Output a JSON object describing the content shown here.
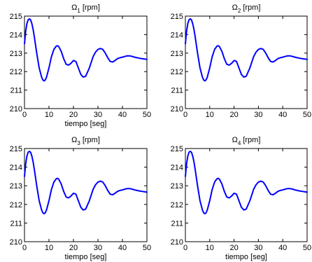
{
  "chart_data": [
    {
      "type": "line",
      "title": {
        "base": "Ω",
        "sub": "1",
        "rest": " [rpm]"
      },
      "xlabel": "tiempo [seg]",
      "ylabel": "",
      "xlim": [
        0,
        50
      ],
      "ylim": [
        210,
        215
      ],
      "xticks": [
        0,
        10,
        20,
        30,
        40,
        50
      ],
      "yticks": [
        210,
        211,
        212,
        213,
        214,
        215
      ],
      "grid": false,
      "series": [
        {
          "color": "#0000ff",
          "x": [
            0,
            0.5,
            1,
            1.5,
            2,
            2.5,
            3,
            3.5,
            4,
            5,
            6,
            7,
            7.5,
            8,
            8.5,
            9,
            10,
            11,
            12,
            13,
            13.5,
            14,
            15,
            16,
            17,
            18,
            19,
            20,
            21,
            22,
            23,
            24,
            25,
            26,
            26.5,
            27,
            28,
            29,
            30,
            31,
            32,
            32.5,
            33,
            34,
            35,
            36,
            37,
            38,
            39,
            40,
            41,
            42,
            43,
            44,
            45,
            46,
            47,
            48,
            49,
            50
          ],
          "y": [
            213.5,
            214.2,
            214.6,
            214.8,
            214.85,
            214.8,
            214.6,
            214.3,
            213.9,
            213.0,
            212.2,
            211.7,
            211.55,
            211.5,
            211.55,
            211.7,
            212.2,
            212.8,
            213.2,
            213.38,
            213.4,
            213.35,
            213.1,
            212.7,
            212.4,
            212.35,
            212.45,
            212.6,
            212.55,
            212.2,
            211.85,
            211.7,
            211.75,
            212.05,
            212.2,
            212.4,
            212.8,
            213.05,
            213.2,
            213.25,
            213.2,
            213.1,
            213.0,
            212.75,
            212.55,
            212.52,
            212.6,
            212.7,
            212.75,
            212.78,
            212.82,
            212.85,
            212.85,
            212.82,
            212.78,
            212.75,
            212.72,
            212.7,
            212.68,
            212.66
          ]
        }
      ]
    },
    {
      "type": "line",
      "title": {
        "base": "Ω",
        "sub": "2",
        "rest": " [rpm]"
      },
      "xlabel": "",
      "ylabel": "",
      "xlim": [
        0,
        50
      ],
      "ylim": [
        210,
        215
      ],
      "xticks": [
        0,
        10,
        20,
        30,
        40,
        50
      ],
      "yticks": [
        210,
        211,
        212,
        213,
        214,
        215
      ],
      "grid": false,
      "series": [
        {
          "color": "#0000ff",
          "x": [
            0,
            0.5,
            1,
            1.5,
            2,
            2.5,
            3,
            3.5,
            4,
            5,
            6,
            7,
            7.5,
            8,
            8.5,
            9,
            10,
            11,
            12,
            13,
            13.5,
            14,
            15,
            16,
            17,
            18,
            19,
            20,
            21,
            22,
            23,
            24,
            25,
            26,
            26.5,
            27,
            28,
            29,
            30,
            31,
            32,
            32.5,
            33,
            34,
            35,
            36,
            37,
            38,
            39,
            40,
            41,
            42,
            43,
            44,
            45,
            46,
            47,
            48,
            49,
            50
          ],
          "y": [
            213.5,
            214.2,
            214.6,
            214.8,
            214.85,
            214.8,
            214.6,
            214.3,
            213.9,
            213.0,
            212.2,
            211.7,
            211.55,
            211.5,
            211.55,
            211.7,
            212.2,
            212.8,
            213.2,
            213.38,
            213.4,
            213.35,
            213.1,
            212.7,
            212.4,
            212.35,
            212.45,
            212.6,
            212.55,
            212.2,
            211.85,
            211.7,
            211.75,
            212.05,
            212.2,
            212.4,
            212.8,
            213.05,
            213.2,
            213.25,
            213.2,
            213.1,
            213.0,
            212.75,
            212.55,
            212.52,
            212.6,
            212.7,
            212.75,
            212.78,
            212.82,
            212.85,
            212.85,
            212.82,
            212.78,
            212.75,
            212.72,
            212.7,
            212.68,
            212.66
          ]
        }
      ]
    },
    {
      "type": "line",
      "title": {
        "base": "Ω",
        "sub": "3",
        "rest": " [rpm]"
      },
      "xlabel": "tiempo [seg]",
      "ylabel": "",
      "xlim": [
        0,
        50
      ],
      "ylim": [
        210,
        215
      ],
      "xticks": [
        0,
        10,
        20,
        30,
        40,
        50
      ],
      "yticks": [
        210,
        211,
        212,
        213,
        214,
        215
      ],
      "grid": false,
      "series": [
        {
          "color": "#0000ff",
          "x": [
            0,
            0.5,
            1,
            1.5,
            2,
            2.5,
            3,
            3.5,
            4,
            5,
            6,
            7,
            7.5,
            8,
            8.5,
            9,
            10,
            11,
            12,
            13,
            13.5,
            14,
            15,
            16,
            17,
            18,
            19,
            20,
            21,
            22,
            23,
            24,
            25,
            26,
            26.5,
            27,
            28,
            29,
            30,
            31,
            32,
            32.5,
            33,
            34,
            35,
            36,
            37,
            38,
            39,
            40,
            41,
            42,
            43,
            44,
            45,
            46,
            47,
            48,
            49,
            50
          ],
          "y": [
            213.5,
            214.2,
            214.6,
            214.8,
            214.85,
            214.8,
            214.6,
            214.3,
            213.9,
            213.0,
            212.2,
            211.7,
            211.55,
            211.5,
            211.55,
            211.7,
            212.2,
            212.8,
            213.2,
            213.38,
            213.4,
            213.35,
            213.1,
            212.7,
            212.4,
            212.35,
            212.45,
            212.6,
            212.55,
            212.2,
            211.85,
            211.7,
            211.75,
            212.05,
            212.2,
            212.4,
            212.8,
            213.05,
            213.2,
            213.25,
            213.2,
            213.1,
            213.0,
            212.75,
            212.55,
            212.52,
            212.6,
            212.7,
            212.75,
            212.78,
            212.82,
            212.85,
            212.85,
            212.82,
            212.78,
            212.75,
            212.72,
            212.7,
            212.68,
            212.66
          ]
        }
      ]
    },
    {
      "type": "line",
      "title": {
        "base": "Ω",
        "sub": "4",
        "rest": " [rpm]"
      },
      "xlabel": "tiempo [seg]",
      "ylabel": "",
      "xlim": [
        0,
        50
      ],
      "ylim": [
        210,
        215
      ],
      "xticks": [
        0,
        10,
        20,
        30,
        40,
        50
      ],
      "yticks": [
        210,
        211,
        212,
        213,
        214,
        215
      ],
      "grid": false,
      "series": [
        {
          "color": "#0000ff",
          "x": [
            0,
            0.5,
            1,
            1.5,
            2,
            2.5,
            3,
            3.5,
            4,
            5,
            6,
            7,
            7.5,
            8,
            8.5,
            9,
            10,
            11,
            12,
            13,
            13.5,
            14,
            15,
            16,
            17,
            18,
            19,
            20,
            21,
            22,
            23,
            24,
            25,
            26,
            26.5,
            27,
            28,
            29,
            30,
            31,
            32,
            32.5,
            33,
            34,
            35,
            36,
            37,
            38,
            39,
            40,
            41,
            42,
            43,
            44,
            45,
            46,
            47,
            48,
            49,
            50
          ],
          "y": [
            213.5,
            214.2,
            214.6,
            214.8,
            214.85,
            214.8,
            214.6,
            214.3,
            213.9,
            213.0,
            212.2,
            211.7,
            211.55,
            211.5,
            211.55,
            211.7,
            212.2,
            212.8,
            213.2,
            213.38,
            213.4,
            213.35,
            213.1,
            212.7,
            212.4,
            212.35,
            212.45,
            212.6,
            212.55,
            212.2,
            211.85,
            211.7,
            211.75,
            212.05,
            212.2,
            212.4,
            212.8,
            213.05,
            213.2,
            213.25,
            213.2,
            213.1,
            213.0,
            212.75,
            212.55,
            212.52,
            212.6,
            212.7,
            212.75,
            212.78,
            212.82,
            212.85,
            212.85,
            212.82,
            212.78,
            212.75,
            212.72,
            212.7,
            212.68,
            212.66
          ]
        }
      ]
    }
  ]
}
